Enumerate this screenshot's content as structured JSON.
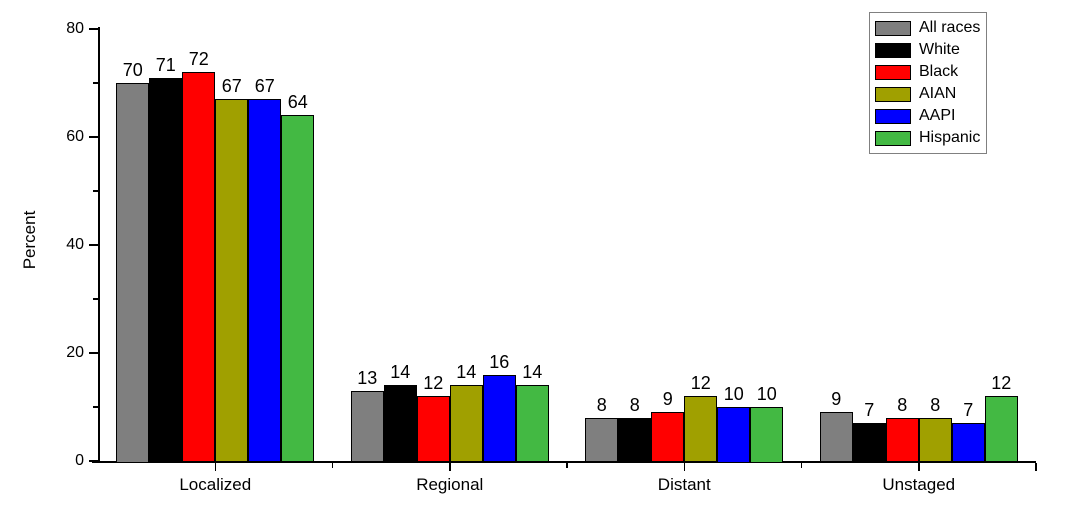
{
  "chart_data": {
    "type": "bar",
    "title": "",
    "xlabel": "",
    "ylabel": "Percent",
    "ylim": [
      0,
      80
    ],
    "yticks_major": [
      0,
      20,
      40,
      60,
      80
    ],
    "yticks_minor": [
      10,
      30,
      50,
      70
    ],
    "grid": false,
    "bar_value_labels": true,
    "legend_position": "top-right",
    "background_color": "#FFFFFF",
    "axis_color": "#000000",
    "categories": [
      "Localized",
      "Regional",
      "Distant",
      "Unstaged"
    ],
    "series": [
      {
        "name": "All races",
        "color": "#7F7F7F",
        "values": [
          70,
          13,
          8,
          9
        ]
      },
      {
        "name": "White",
        "color": "#000000",
        "values": [
          71,
          14,
          8,
          7
        ]
      },
      {
        "name": "Black",
        "color": "#FF0000",
        "values": [
          72,
          12,
          9,
          8
        ]
      },
      {
        "name": "AIAN",
        "color": "#A0A000",
        "values": [
          67,
          14,
          12,
          8
        ]
      },
      {
        "name": "AAPI",
        "color": "#0000FF",
        "values": [
          67,
          16,
          10,
          7
        ]
      },
      {
        "name": "Hispanic",
        "color": "#43B943",
        "values": [
          64,
          14,
          10,
          12
        ]
      }
    ]
  }
}
